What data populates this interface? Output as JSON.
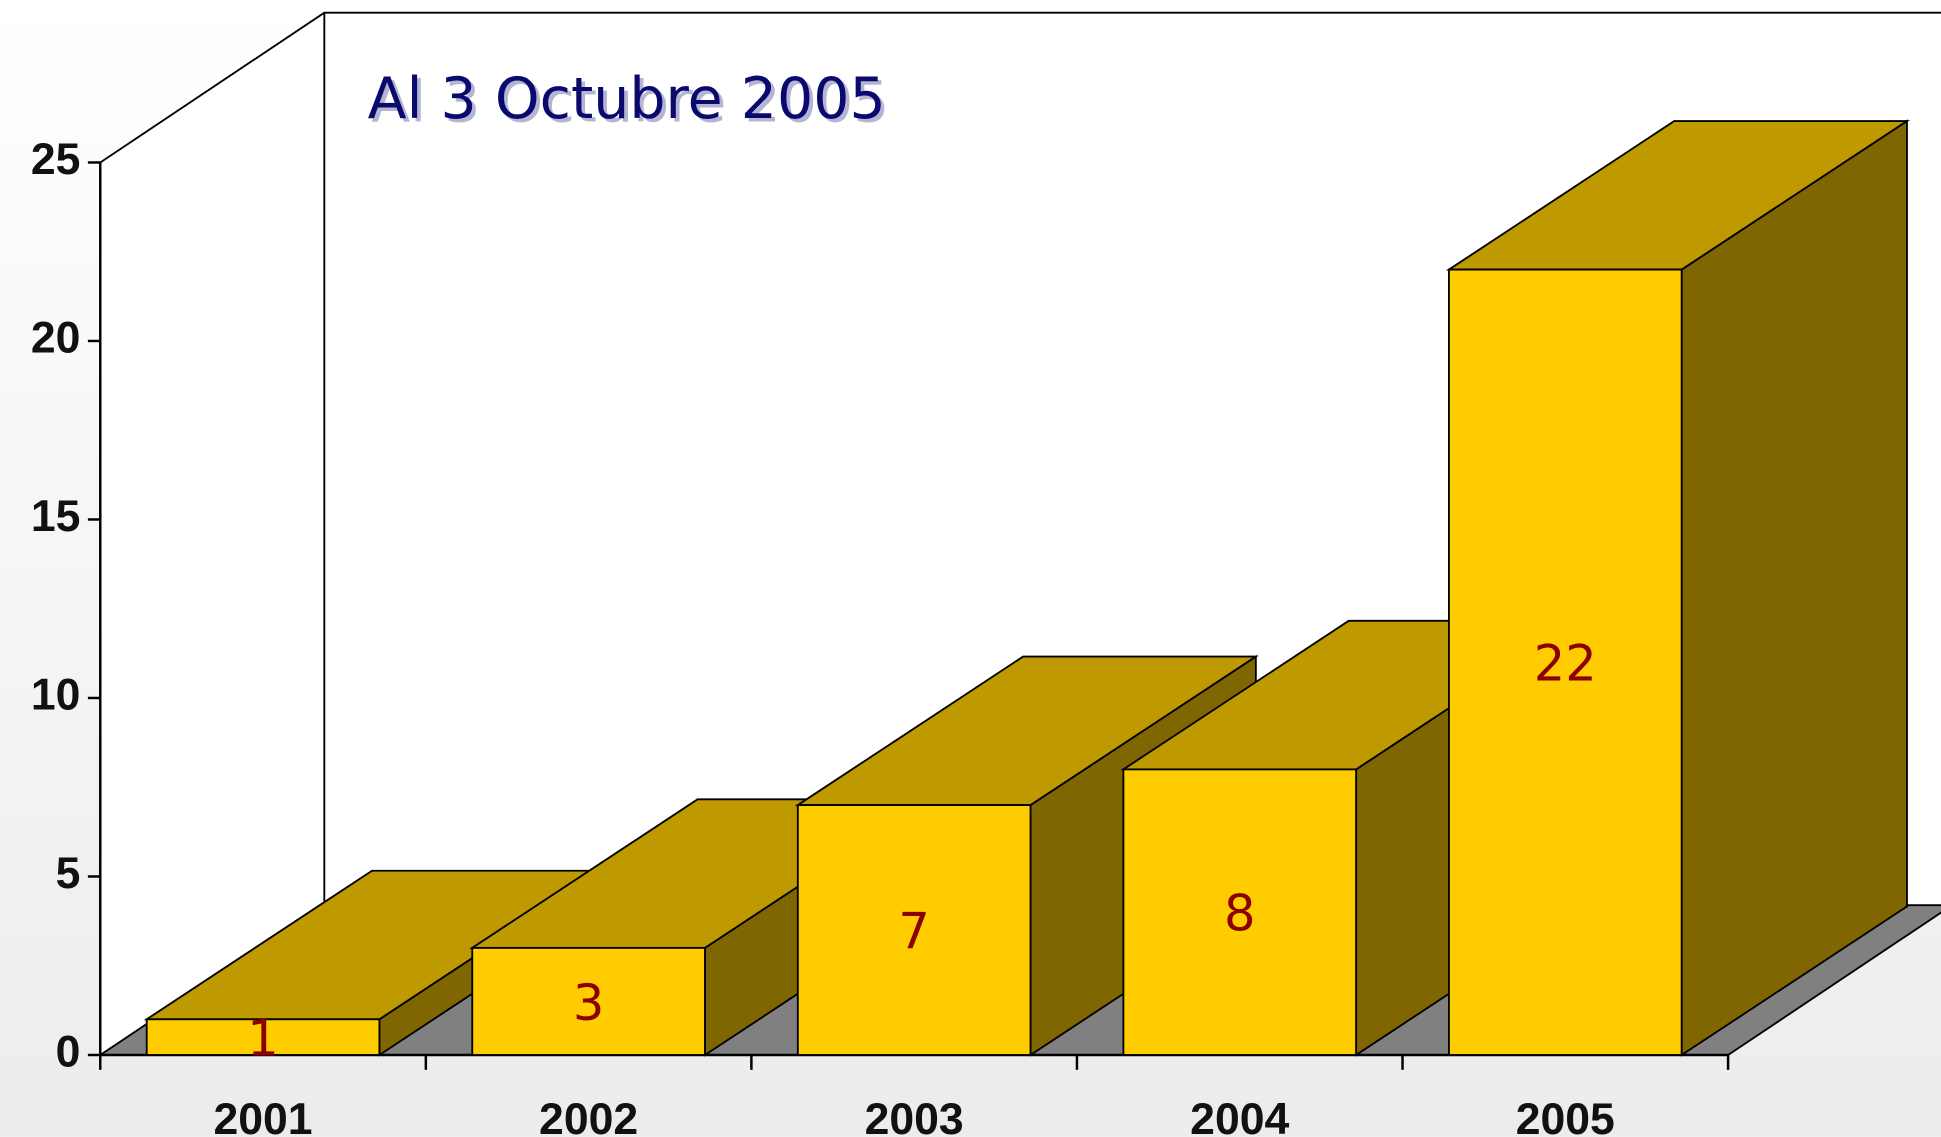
{
  "chart_data": {
    "type": "bar3d",
    "title": "Al 3 Octubre 2005",
    "categories": [
      "2001",
      "2002",
      "2003",
      "2004",
      "2005"
    ],
    "values": [
      1,
      3,
      7,
      8,
      22
    ],
    "color": "#ffcc00",
    "ylim": [
      0,
      25
    ],
    "yticks": [
      0,
      5,
      10,
      15,
      20,
      25
    ]
  }
}
